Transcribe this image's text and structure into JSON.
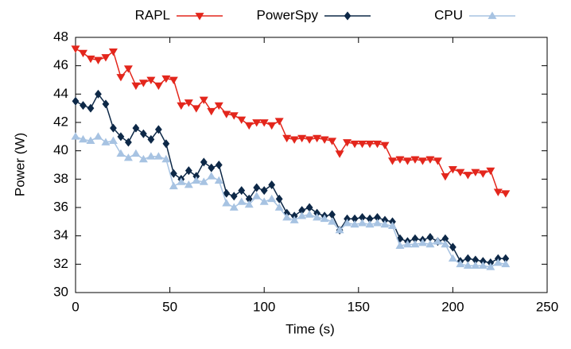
{
  "chart_data": {
    "type": "line",
    "xlabel": "Time (s)",
    "ylabel": "Power (W)",
    "x": [
      0,
      4,
      8,
      12,
      16,
      20,
      24,
      28,
      32,
      36,
      40,
      44,
      48,
      52,
      56,
      60,
      64,
      68,
      72,
      76,
      80,
      84,
      88,
      92,
      96,
      100,
      104,
      108,
      112,
      116,
      120,
      124,
      128,
      132,
      136,
      140,
      144,
      148,
      152,
      156,
      160,
      164,
      168,
      172,
      176,
      180,
      184,
      188,
      192,
      196,
      200,
      204,
      208,
      212,
      216,
      220,
      224,
      228
    ],
    "series": [
      {
        "name": "RAPL",
        "color": "#e3261c",
        "marker": "triangle-down",
        "values": [
          47.2,
          46.9,
          46.5,
          46.4,
          46.6,
          47.0,
          45.2,
          45.8,
          44.6,
          44.8,
          45.0,
          44.6,
          45.1,
          45.0,
          43.2,
          43.4,
          43.0,
          43.6,
          42.8,
          43.2,
          42.6,
          42.5,
          42.2,
          41.8,
          42.0,
          42.0,
          41.8,
          42.1,
          40.9,
          40.8,
          40.9,
          40.8,
          40.9,
          40.8,
          40.7,
          39.8,
          40.6,
          40.5,
          40.5,
          40.5,
          40.5,
          40.4,
          39.3,
          39.4,
          39.3,
          39.4,
          39.3,
          39.4,
          39.3,
          38.2,
          38.7,
          38.5,
          38.3,
          38.5,
          38.4,
          38.6,
          37.1,
          37.0
        ]
      },
      {
        "name": "PowerSpy",
        "color": "#0d2847",
        "marker": "diamond",
        "values": [
          43.5,
          43.2,
          43.0,
          44.0,
          43.3,
          41.6,
          41.0,
          40.6,
          41.6,
          41.2,
          40.8,
          41.5,
          40.5,
          38.4,
          38.0,
          38.6,
          38.2,
          39.2,
          38.8,
          39.0,
          37.0,
          36.8,
          37.2,
          36.6,
          37.4,
          37.2,
          37.6,
          36.6,
          35.6,
          35.4,
          35.8,
          36.0,
          35.6,
          35.4,
          35.5,
          34.4,
          35.2,
          35.2,
          35.3,
          35.2,
          35.3,
          35.1,
          35.0,
          33.8,
          33.6,
          33.8,
          33.7,
          33.9,
          33.6,
          33.8,
          33.2,
          32.2,
          32.4,
          32.3,
          32.2,
          32.1,
          32.4,
          32.4
        ]
      },
      {
        "name": "CPU",
        "color": "#a7c3e2",
        "marker": "triangle-up",
        "values": [
          41.0,
          40.8,
          40.7,
          41.0,
          40.6,
          40.7,
          39.8,
          39.5,
          39.8,
          39.4,
          39.6,
          39.6,
          39.4,
          37.5,
          37.8,
          37.6,
          37.9,
          37.8,
          38.2,
          37.9,
          36.3,
          36.0,
          36.4,
          36.2,
          36.8,
          36.4,
          36.6,
          36.0,
          35.3,
          35.1,
          35.4,
          35.5,
          35.3,
          35.2,
          35.0,
          34.4,
          34.9,
          34.8,
          34.9,
          34.8,
          34.9,
          34.8,
          34.7,
          33.3,
          33.4,
          33.4,
          33.5,
          33.4,
          33.6,
          33.4,
          32.4,
          32.0,
          31.9,
          31.9,
          31.9,
          31.8,
          32.1,
          32.0
        ]
      }
    ],
    "xlim": [
      0,
      250
    ],
    "xticks": [
      0,
      50,
      100,
      150,
      200,
      250
    ],
    "ylim": [
      30,
      48
    ],
    "yticks": [
      30,
      32,
      34,
      36,
      38,
      40,
      42,
      44,
      46,
      48
    ],
    "legend": "top"
  }
}
